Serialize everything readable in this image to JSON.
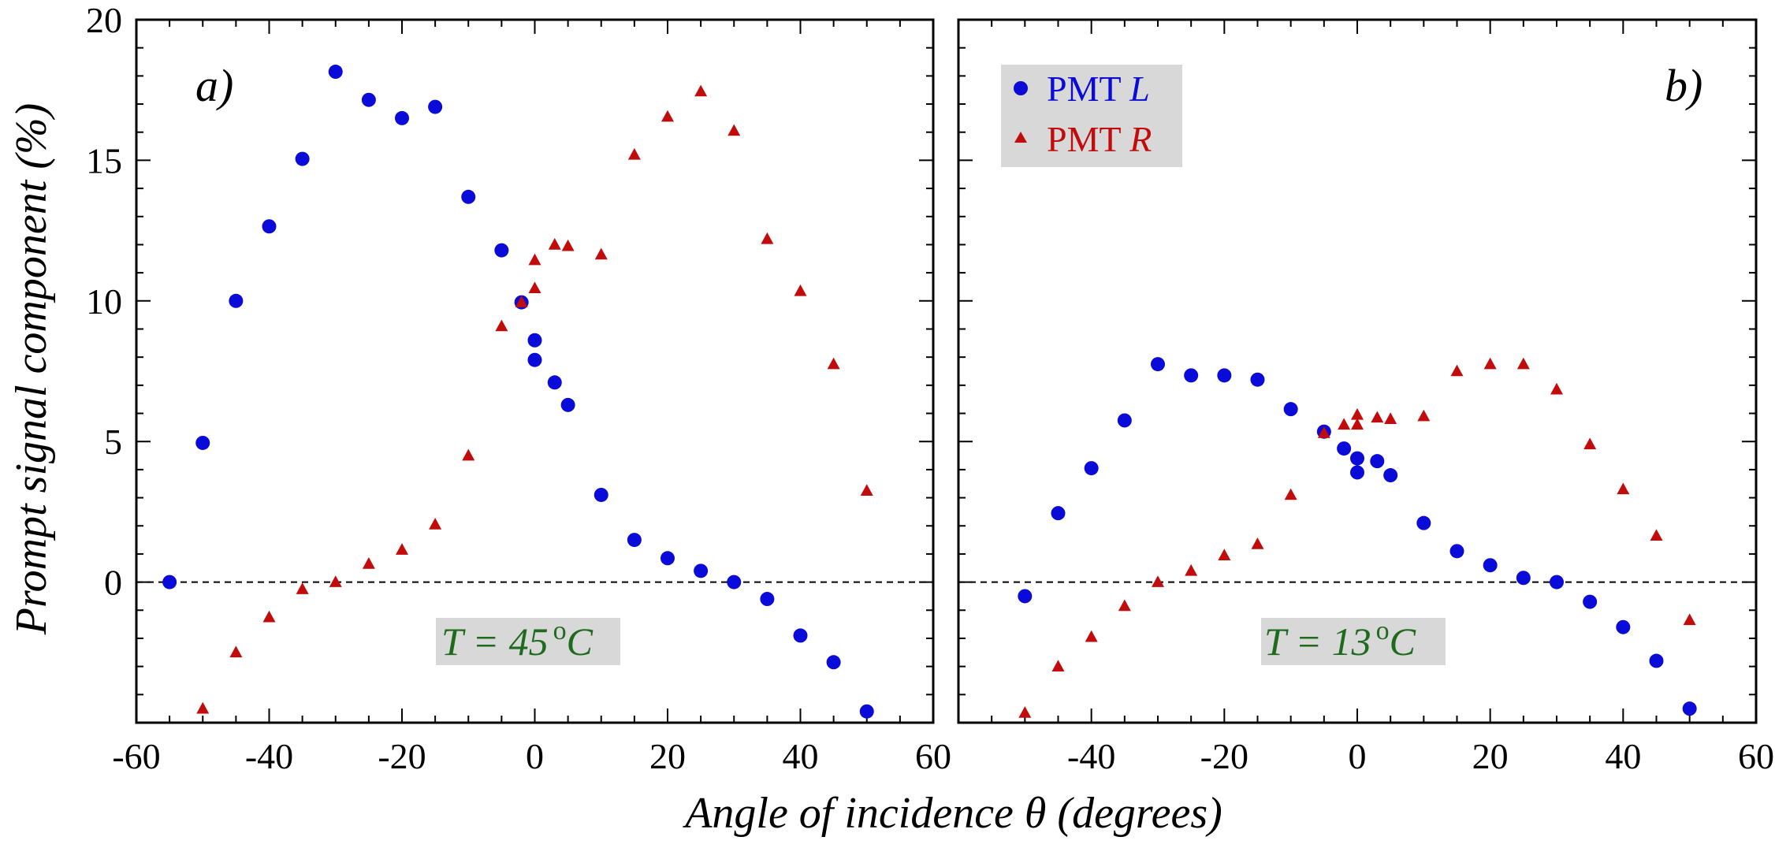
{
  "colors": {
    "pmt_l": "#0a0ad9",
    "pmt_r": "#c20c0c",
    "temp_text": "#1e6b1e",
    "box_fill": "#d8d8d8"
  },
  "axes": {
    "xlabel": "Angle of incidence θ (degrees)",
    "ylabel": "Prompt signal component (%)"
  },
  "legend": {
    "pmt_l_prefix": "PMT ",
    "pmt_l_letter": "L",
    "pmt_r_prefix": "PMT ",
    "pmt_r_letter": "R"
  },
  "chart_data": [
    {
      "type": "scatter",
      "panel_label": "a)",
      "annotation": "T = 45 °C",
      "annotation_var": "T",
      "annotation_rest": " = 45",
      "annotation_deg": "o",
      "annotation_unit": "C",
      "xlim": [
        -60,
        60
      ],
      "ylim": [
        -5,
        20
      ],
      "x_tick_labels": [
        "-60",
        "-40",
        "-20",
        "0",
        "20",
        "40",
        "60"
      ],
      "y_tick_labels": [
        "0",
        "5",
        "10",
        "15",
        "20"
      ],
      "grid": false,
      "zero_line": "dashed",
      "legend": "none",
      "series": [
        {
          "name": "PMT L",
          "marker": "circle",
          "x": [
            -55,
            -50,
            -45,
            -40,
            -35,
            -30,
            -25,
            -20,
            -15,
            -10,
            -5,
            -2,
            0,
            0,
            3,
            5,
            10,
            15,
            20,
            25,
            30,
            35,
            40,
            45,
            50
          ],
          "y": [
            0,
            4.95,
            10,
            12.65,
            15.05,
            18.15,
            17.15,
            16.5,
            16.9,
            13.7,
            11.8,
            9.95,
            8.6,
            7.9,
            7.1,
            6.3,
            3.1,
            1.5,
            0.85,
            0.4,
            0,
            -0.6,
            -1.9,
            -2.85,
            -4.6
          ]
        },
        {
          "name": "PMT R",
          "marker": "triangle",
          "x": [
            -50,
            -45,
            -40,
            -35,
            -30,
            -25,
            -20,
            -15,
            -10,
            -5,
            -2,
            0,
            0,
            3,
            5,
            10,
            15,
            20,
            25,
            30,
            35,
            40,
            45,
            50
          ],
          "y": [
            -4.5,
            -2.5,
            -1.25,
            -0.25,
            0,
            0.65,
            1.15,
            2.05,
            4.5,
            9.1,
            9.95,
            10.45,
            11.45,
            12,
            11.95,
            11.65,
            15.2,
            16.55,
            17.45,
            16.05,
            12.2,
            10.35,
            7.75,
            3.25
          ]
        }
      ]
    },
    {
      "type": "scatter",
      "panel_label": "b)",
      "annotation": "T = 13 °C",
      "annotation_var": "T",
      "annotation_rest": " = 13",
      "annotation_deg": "o",
      "annotation_unit": "C",
      "xlim": [
        -60,
        60
      ],
      "ylim": [
        -5,
        20
      ],
      "x_tick_labels": [
        "-40",
        "-20",
        "0",
        "20",
        "40",
        "60"
      ],
      "grid": false,
      "zero_line": "dashed",
      "legend": "top-left",
      "series": [
        {
          "name": "PMT L",
          "marker": "circle",
          "x": [
            -50,
            -45,
            -40,
            -35,
            -30,
            -25,
            -20,
            -15,
            -10,
            -5,
            -2,
            0,
            0,
            3,
            5,
            10,
            15,
            20,
            25,
            30,
            35,
            40,
            45,
            50
          ],
          "y": [
            -0.5,
            2.45,
            4.05,
            5.75,
            7.75,
            7.35,
            7.35,
            7.2,
            6.15,
            5.35,
            4.75,
            4.4,
            3.9,
            4.3,
            3.8,
            2.1,
            1.1,
            0.6,
            0.15,
            0,
            -0.7,
            -1.6,
            -2.8,
            -4.5
          ]
        },
        {
          "name": "PMT R",
          "marker": "triangle",
          "x": [
            -50,
            -45,
            -40,
            -35,
            -30,
            -25,
            -20,
            -15,
            -10,
            -5,
            -2,
            0,
            0,
            3,
            5,
            10,
            15,
            20,
            25,
            30,
            35,
            40,
            45,
            50
          ],
          "y": [
            -4.65,
            -3,
            -1.95,
            -0.85,
            0,
            0.4,
            0.95,
            1.35,
            3.1,
            5.3,
            5.6,
            5.6,
            5.95,
            5.85,
            5.8,
            5.9,
            7.5,
            7.75,
            7.75,
            6.85,
            4.9,
            3.3,
            1.65,
            -1.35
          ]
        }
      ]
    }
  ]
}
